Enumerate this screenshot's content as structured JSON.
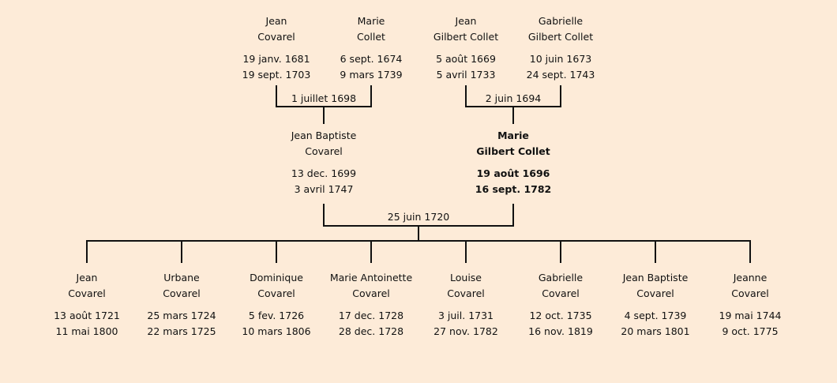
{
  "grandparents": [
    {
      "first": "Jean",
      "last": "Covarel",
      "birth": "19 janv. 1681",
      "death": "19 sept. 1703"
    },
    {
      "first": "Marie",
      "last": "Collet",
      "birth": "6 sept. 1674",
      "death": "9 mars 1739"
    },
    {
      "first": "Jean",
      "last": "Gilbert Collet",
      "birth": "5 août 1669",
      "death": "5 avril 1733"
    },
    {
      "first": "Gabrielle",
      "last": "Gilbert Collet",
      "birth": "10 juin 1673",
      "death": "24 sept. 1743"
    }
  ],
  "parents": [
    {
      "first": "Jean Baptiste",
      "last": "Covarel",
      "birth": "13 dec. 1699",
      "death": "3 avril 1747"
    },
    {
      "first": "Marie",
      "last": "Gilbert Collet",
      "birth": "19 août 1696",
      "death": "16 sept. 1782",
      "highlighted": true
    }
  ],
  "marriages": {
    "covarel_collet": "1 juillet 1698",
    "gilbert_collet": "2 juin 1694",
    "parents": "25 juin 1720"
  },
  "children": [
    {
      "first": "Jean",
      "last": "Covarel",
      "birth": "13 août 1721",
      "death": "11 mai 1800"
    },
    {
      "first": "Urbane",
      "last": "Covarel",
      "birth": "25 mars 1724",
      "death": "22 mars 1725"
    },
    {
      "first": "Dominique",
      "last": "Covarel",
      "birth": "5 fev. 1726",
      "death": "10 mars 1806"
    },
    {
      "first": "Marie Antoinette",
      "last": "Covarel",
      "birth": "17 dec. 1728",
      "death": "28 dec. 1728"
    },
    {
      "first": "Louise",
      "last": "Covarel",
      "birth": "3 juil. 1731",
      "death": "27 nov. 1782"
    },
    {
      "first": "Gabrielle",
      "last": "Covarel",
      "birth": "12 oct. 1735",
      "death": "16 nov. 1819"
    },
    {
      "first": "Jean Baptiste",
      "last": "Covarel",
      "birth": "4 sept. 1739",
      "death": "20 mars 1801"
    },
    {
      "first": "Jeanne",
      "last": "Covarel",
      "birth": "19 mai 1744",
      "death": "9 oct. 1775"
    }
  ],
  "colors": {
    "background": "#fdebd8",
    "lines": "#111111"
  }
}
